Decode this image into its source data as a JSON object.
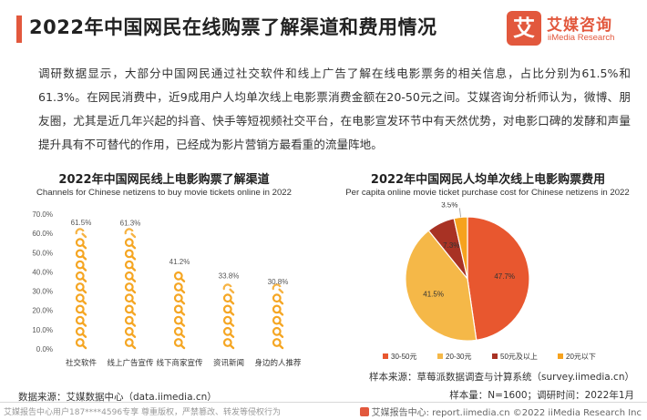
{
  "header": {
    "title": "2022年中国网民在线购票了解渠道和费用情况"
  },
  "logo": {
    "mark": "艾",
    "name_cn": "艾媒咨询",
    "name_en": "iiMedia Research"
  },
  "intro": "调研数据显示，大部分中国网民通过社交软件和线上广告了解在线电影票务的相关信息，占比分别为61.5%和61.3%。在网民消费中，近9成用户人均单次线上电影票消费金额在20-50元之间。艾媒咨询分析师认为，微博、朋友圈，尤其是近几年兴起的抖音、快手等短视频社交平台，在电影宣发环节中有天然优势，对电影口碑的发酵和声量提升具有不可替代的作用，已经成为影片营销方最看重的流量阵地。",
  "charts": {
    "left": {
      "title": "2022年中国网民线上电影购票了解渠道",
      "subtitle": "Channels for Chinese netizens to buy movie tickets online in 2022"
    },
    "right": {
      "title": "2022年中国网民人均单次线上电影购票费用",
      "subtitle": "Per capita online movie ticket purchase cost for Chinese netizens in 2022"
    }
  },
  "chart_data": [
    {
      "type": "bar",
      "title": "2022年中国网民线上电影购票了解渠道",
      "subtitle": "Channels for Chinese netizens to buy movie tickets online in 2022",
      "categories": [
        "社交软件",
        "线上广告宣传",
        "线下商家宣传",
        "资讯新闻",
        "身边的人推荐"
      ],
      "values": [
        61.5,
        61.3,
        41.2,
        33.8,
        30.8
      ],
      "value_labels": [
        "61.5%",
        "61.3%",
        "41.2%",
        "33.8%",
        "30.8%"
      ],
      "y_ticks": [
        "0.0%",
        "10.0%",
        "20.0%",
        "30.0%",
        "40.0%",
        "50.0%",
        "60.0%",
        "70.0%"
      ],
      "ylim": [
        0,
        70
      ],
      "grid": false,
      "bar_style": "stacked search-icon pictograms",
      "color": "#f5a623"
    },
    {
      "type": "pie",
      "title": "2022年中国网民人均单次线上电影购票费用",
      "subtitle": "Per capita online movie ticket purchase cost for Chinese netizens in 2022",
      "slices": [
        {
          "label": "30-50元",
          "value": 47.7,
          "value_label": "47.7%",
          "color": "#e8572f"
        },
        {
          "label": "20-30元",
          "value": 41.5,
          "value_label": "41.5%",
          "color": "#f5b848"
        },
        {
          "label": "50元及以上",
          "value": 7.3,
          "value_label": "7.3%",
          "color": "#a83224"
        },
        {
          "label": "20元以下",
          "value": 3.5,
          "value_label": "3.5%",
          "color": "#f6a21e"
        }
      ],
      "legend_position": "bottom"
    }
  ],
  "notes": {
    "source_left": "数据来源：艾媒数据中心（data.iimedia.cn）",
    "source_right": "样本来源：草莓派数据调查与计算系统（survey.iimedia.cn）",
    "sample": "样本量：N=1600；调研时间：2022年1月"
  },
  "footer": {
    "watermark": "艾媒报告中心用户187****4596专享 尊重版权，严禁篡改、转发等侵权行为",
    "right": "艾媒报告中心: report.iimedia.cn  ©2022  iiMedia Research  Inc"
  }
}
